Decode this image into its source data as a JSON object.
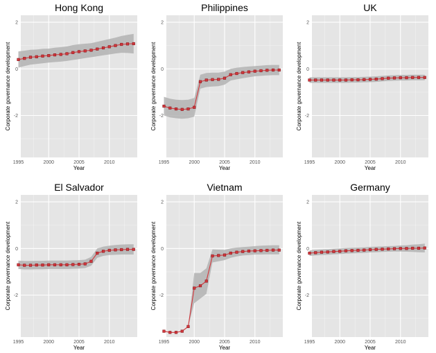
{
  "chart_data": [
    {
      "type": "line",
      "title": "Hong Kong",
      "xlabel": "Year",
      "ylabel": "Corporate governance development",
      "xlim": [
        1995.4,
        2014.6
      ],
      "ylim": [
        -3.8,
        2.3
      ],
      "xticks": [
        1995,
        2000,
        2005,
        2010
      ],
      "yticks": [
        -2,
        0,
        2
      ],
      "x": [
        1995,
        1996,
        1997,
        1998,
        1999,
        2000,
        2001,
        2002,
        2003,
        2004,
        2005,
        2006,
        2007,
        2008,
        2009,
        2010,
        2011,
        2012,
        2013,
        2014
      ],
      "y": [
        0.4,
        0.45,
        0.5,
        0.52,
        0.55,
        0.57,
        0.6,
        0.62,
        0.65,
        0.7,
        0.74,
        0.77,
        0.8,
        0.85,
        0.9,
        0.95,
        1.0,
        1.05,
        1.07,
        1.08
      ],
      "ci_lower": [
        0.05,
        0.12,
        0.18,
        0.21,
        0.24,
        0.27,
        0.29,
        0.31,
        0.34,
        0.38,
        0.42,
        0.46,
        0.5,
        0.54,
        0.58,
        0.62,
        0.66,
        0.69,
        0.68,
        0.66
      ],
      "ci_upper": [
        0.75,
        0.78,
        0.82,
        0.83,
        0.86,
        0.87,
        0.91,
        0.93,
        0.96,
        1.02,
        1.06,
        1.08,
        1.1,
        1.16,
        1.22,
        1.28,
        1.34,
        1.41,
        1.46,
        1.5
      ],
      "grid": true
    },
    {
      "type": "line",
      "title": "Philippines",
      "xlabel": "Year",
      "ylabel": "Corporate governance development",
      "xlim": [
        1995.4,
        2014.6
      ],
      "ylim": [
        -3.8,
        2.3
      ],
      "xticks": [
        1995,
        2000,
        2005,
        2010
      ],
      "yticks": [
        -2,
        0,
        2
      ],
      "x": [
        1995,
        1996,
        1997,
        1998,
        1999,
        2000,
        2001,
        2002,
        2003,
        2004,
        2005,
        2006,
        2007,
        2008,
        2009,
        2010,
        2011,
        2012,
        2013,
        2014
      ],
      "y": [
        -1.6,
        -1.68,
        -1.72,
        -1.74,
        -1.72,
        -1.65,
        -0.55,
        -0.48,
        -0.46,
        -0.45,
        -0.4,
        -0.25,
        -0.2,
        -0.16,
        -0.13,
        -0.1,
        -0.08,
        -0.06,
        -0.05,
        -0.05
      ],
      "ci_lower": [
        -2.0,
        -2.08,
        -2.12,
        -2.14,
        -2.12,
        -2.05,
        -0.85,
        -0.78,
        -0.76,
        -0.74,
        -0.68,
        -0.5,
        -0.45,
        -0.4,
        -0.36,
        -0.32,
        -0.3,
        -0.28,
        -0.27,
        -0.27
      ],
      "ci_upper": [
        -1.2,
        -1.28,
        -1.32,
        -1.34,
        -1.32,
        -1.25,
        -0.25,
        -0.18,
        -0.16,
        -0.16,
        -0.12,
        0.0,
        0.05,
        0.08,
        0.1,
        0.12,
        0.14,
        0.16,
        0.17,
        0.17
      ],
      "grid": true
    },
    {
      "type": "line",
      "title": "UK",
      "xlabel": "Year",
      "ylabel": "Corporate governance development",
      "xlim": [
        1995.4,
        2014.6
      ],
      "ylim": [
        -3.8,
        2.3
      ],
      "xticks": [
        1995,
        2000,
        2005,
        2010
      ],
      "yticks": [
        -2,
        0,
        2
      ],
      "x": [
        1995,
        1996,
        1997,
        1998,
        1999,
        2000,
        2001,
        2002,
        2003,
        2004,
        2005,
        2006,
        2007,
        2008,
        2009,
        2010,
        2011,
        2012,
        2013,
        2014
      ],
      "y": [
        -0.48,
        -0.48,
        -0.48,
        -0.48,
        -0.48,
        -0.48,
        -0.48,
        -0.47,
        -0.47,
        -0.46,
        -0.45,
        -0.44,
        -0.42,
        -0.4,
        -0.39,
        -0.38,
        -0.38,
        -0.37,
        -0.37,
        -0.37
      ],
      "ci_lower": [
        -0.6,
        -0.6,
        -0.6,
        -0.6,
        -0.6,
        -0.6,
        -0.6,
        -0.59,
        -0.59,
        -0.58,
        -0.57,
        -0.56,
        -0.54,
        -0.52,
        -0.51,
        -0.5,
        -0.5,
        -0.49,
        -0.49,
        -0.49
      ],
      "ci_upper": [
        -0.36,
        -0.36,
        -0.36,
        -0.36,
        -0.36,
        -0.36,
        -0.36,
        -0.35,
        -0.35,
        -0.34,
        -0.33,
        -0.32,
        -0.3,
        -0.28,
        -0.27,
        -0.26,
        -0.26,
        -0.25,
        -0.25,
        -0.25
      ],
      "grid": true
    },
    {
      "type": "line",
      "title": "El Salvador",
      "xlabel": "Year",
      "ylabel": "Corporate governance development",
      "xlim": [
        1995.4,
        2014.6
      ],
      "ylim": [
        -3.8,
        2.3
      ],
      "xticks": [
        1995,
        2000,
        2005,
        2010
      ],
      "yticks": [
        -2,
        0,
        2
      ],
      "x": [
        1995,
        1996,
        1997,
        1998,
        1999,
        2000,
        2001,
        2002,
        2003,
        2004,
        2005,
        2006,
        2007,
        2008,
        2009,
        2010,
        2011,
        2012,
        2013,
        2014
      ],
      "y": [
        -0.7,
        -0.72,
        -0.72,
        -0.71,
        -0.71,
        -0.7,
        -0.7,
        -0.7,
        -0.7,
        -0.69,
        -0.68,
        -0.66,
        -0.55,
        -0.2,
        -0.12,
        -0.08,
        -0.06,
        -0.05,
        -0.04,
        -0.04
      ],
      "ci_lower": [
        -0.88,
        -0.9,
        -0.9,
        -0.89,
        -0.89,
        -0.88,
        -0.88,
        -0.88,
        -0.88,
        -0.87,
        -0.86,
        -0.84,
        -0.74,
        -0.4,
        -0.32,
        -0.28,
        -0.27,
        -0.26,
        -0.26,
        -0.26
      ],
      "ci_upper": [
        -0.52,
        -0.54,
        -0.54,
        -0.53,
        -0.53,
        -0.52,
        -0.52,
        -0.52,
        -0.52,
        -0.51,
        -0.5,
        -0.48,
        -0.36,
        0.0,
        0.08,
        0.12,
        0.15,
        0.17,
        0.18,
        0.18
      ],
      "grid": true
    },
    {
      "type": "line",
      "title": "Vietnam",
      "xlabel": "Year",
      "ylabel": "Corporate governance development",
      "xlim": [
        1995.4,
        2014.6
      ],
      "ylim": [
        -3.8,
        2.3
      ],
      "xticks": [
        1995,
        2000,
        2005,
        2010
      ],
      "yticks": [
        -2,
        0,
        2
      ],
      "x": [
        1995,
        1996,
        1997,
        1998,
        1999,
        2000,
        2001,
        2002,
        2003,
        2004,
        2005,
        2006,
        2007,
        2008,
        2009,
        2010,
        2011,
        2012,
        2013,
        2014
      ],
      "y": [
        -3.55,
        -3.6,
        -3.6,
        -3.55,
        -3.35,
        -1.7,
        -1.6,
        -1.4,
        -0.32,
        -0.3,
        -0.28,
        -0.2,
        -0.16,
        -0.13,
        -0.11,
        -0.1,
        -0.09,
        -0.08,
        -0.07,
        -0.07
      ],
      "ci_lower": [
        -3.55,
        -3.6,
        -3.6,
        -3.55,
        -3.35,
        -2.35,
        -2.15,
        -1.95,
        -0.6,
        -0.55,
        -0.5,
        -0.4,
        -0.34,
        -0.3,
        -0.28,
        -0.26,
        -0.26,
        -0.25,
        -0.25,
        -0.25
      ],
      "ci_upper": [
        -3.55,
        -3.6,
        -3.6,
        -3.55,
        -3.35,
        -1.05,
        -1.05,
        -0.85,
        -0.04,
        -0.05,
        -0.06,
        0.0,
        0.04,
        0.06,
        0.08,
        0.1,
        0.12,
        0.13,
        0.14,
        0.14
      ],
      "grid": true
    },
    {
      "type": "line",
      "title": "Germany",
      "xlabel": "Year",
      "ylabel": "Corporate governance development",
      "xlim": [
        1995.4,
        2014.6
      ],
      "ylim": [
        -3.8,
        2.3
      ],
      "xticks": [
        1995,
        2000,
        2005,
        2010
      ],
      "yticks": [
        -2,
        0,
        2
      ],
      "x": [
        1995,
        1996,
        1997,
        1998,
        1999,
        2000,
        2001,
        2002,
        2003,
        2004,
        2005,
        2006,
        2007,
        2008,
        2009,
        2010,
        2011,
        2012,
        2013,
        2014
      ],
      "y": [
        -0.2,
        -0.18,
        -0.16,
        -0.15,
        -0.13,
        -0.12,
        -0.1,
        -0.09,
        -0.08,
        -0.07,
        -0.05,
        -0.04,
        -0.03,
        -0.02,
        -0.01,
        0.0,
        0.0,
        0.01,
        0.01,
        0.02
      ],
      "ci_lower": [
        -0.32,
        -0.3,
        -0.28,
        -0.27,
        -0.25,
        -0.24,
        -0.22,
        -0.21,
        -0.2,
        -0.19,
        -0.17,
        -0.16,
        -0.15,
        -0.14,
        -0.13,
        -0.13,
        -0.14,
        -0.15,
        -0.16,
        -0.17
      ],
      "ci_upper": [
        -0.08,
        -0.06,
        -0.04,
        -0.03,
        -0.01,
        0.0,
        0.02,
        0.03,
        0.04,
        0.05,
        0.07,
        0.08,
        0.09,
        0.1,
        0.11,
        0.13,
        0.14,
        0.17,
        0.18,
        0.21
      ],
      "grid": true
    }
  ],
  "colors": {
    "panel_bg": "#e5e5e5",
    "grid": "#ffffff",
    "ribbon": "#b3b3b3",
    "line": "#d2373c",
    "marker": "#8b1a1f"
  }
}
